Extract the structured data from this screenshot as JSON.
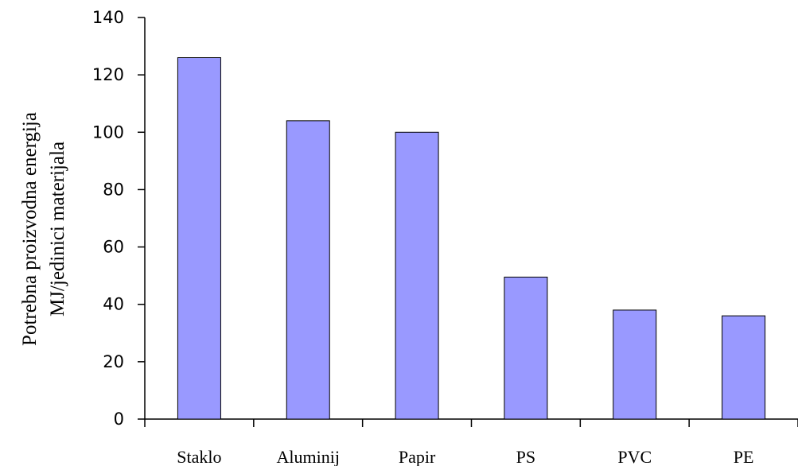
{
  "chart_data": {
    "type": "bar",
    "title": "",
    "xlabel": "",
    "ylabel_lines": [
      "Potrebna proizvodna energija",
      "MJ/jedinici materijala"
    ],
    "categories": [
      "Staklo",
      "Aluminij",
      "Papir",
      "PS",
      "PVC",
      "PE"
    ],
    "values": [
      126,
      104,
      100,
      49.5,
      38,
      36
    ],
    "ylim": [
      0,
      140
    ],
    "yticks": [
      0,
      20,
      40,
      60,
      80,
      100,
      120,
      140
    ],
    "grid": false,
    "legend": "none",
    "bar_color": "#9999ff",
    "bar_edge_color": "#000000"
  }
}
